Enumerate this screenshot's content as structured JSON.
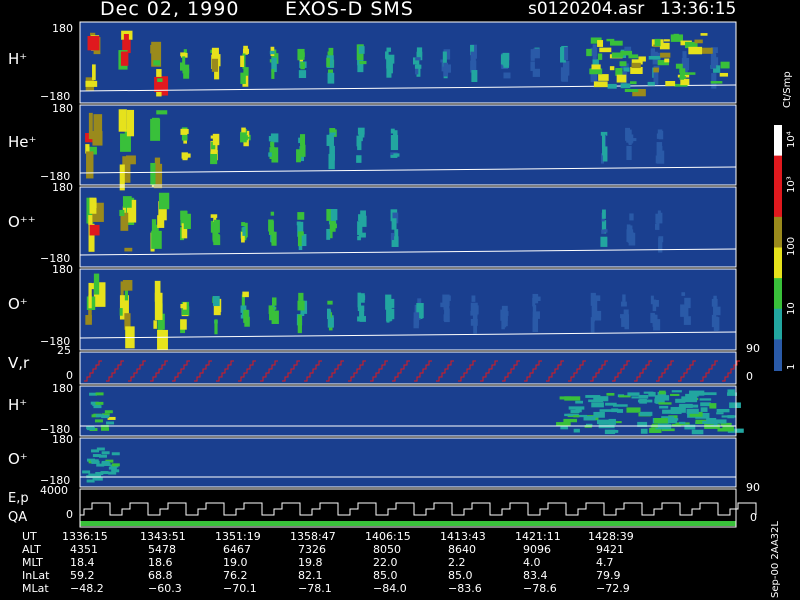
{
  "header": {
    "date": "Dec 02, 1990",
    "instrument": "EXOS-D SMS",
    "file": "s0120204.asr",
    "time": "13:36:15"
  },
  "colors": {
    "background": "#1a3f8f",
    "low": "#2a5aa8",
    "teal": "#22a6a0",
    "green": "#39c03a",
    "yellow": "#e6e21c",
    "olive": "#9a8a1c",
    "red": "#e0191e",
    "white": "#ffffff"
  },
  "panels": [
    {
      "id": "h-plus",
      "label": "H⁺",
      "ytop": "180",
      "ybottom": "−180"
    },
    {
      "id": "he-plus",
      "label": "He⁺",
      "ytop": "180",
      "ybottom": "−180"
    },
    {
      "id": "o-plus-plus",
      "label": "O⁺⁺",
      "ytop": "180",
      "ybottom": "−180"
    },
    {
      "id": "o-plus",
      "label": "O⁺",
      "ytop": "180",
      "ybottom": "−180"
    },
    {
      "id": "vr",
      "label": "V,r",
      "ytop": "25",
      "ybottom": "0",
      "right": "90",
      "right2": "0"
    },
    {
      "id": "h-plus-2",
      "label": "H⁺",
      "ytop": "180",
      "ybottom": "−180"
    },
    {
      "id": "o-plus-2",
      "label": "O⁺",
      "ytop": "180",
      "ybottom": "−180",
      "right": "90"
    },
    {
      "id": "ep-qa",
      "label": "E,p",
      "label2": "QA",
      "ytop": "4000",
      "ybottom": "0",
      "right": "0"
    }
  ],
  "colorbar": {
    "title": "Ct/Smp",
    "ticks": [
      "10⁴",
      "10³",
      "100",
      "10",
      "1"
    ]
  },
  "footer_note": "Sep-00  2AA32L",
  "chart_data": {
    "type": "heatmap",
    "title": "Dec 02, 1990   EXOS-D SMS",
    "time_labels": [
      "1336:15",
      "1343:51",
      "1351:19",
      "1358:47",
      "1406:15",
      "1413:43",
      "1421:11",
      "1428:39"
    ],
    "ephemeris": [
      {
        "name": "UT",
        "values": [
          "1336:15",
          "1343:51",
          "1351:19",
          "1358:47",
          "1406:15",
          "1413:43",
          "1421:11",
          "1428:39"
        ]
      },
      {
        "name": "ALT",
        "values": [
          "4351",
          "5478",
          "6467",
          "7326",
          "8050",
          "8640",
          "9096",
          "9421"
        ]
      },
      {
        "name": "MLT",
        "values": [
          "18.4",
          "18.6",
          "19.0",
          "19.8",
          "22.0",
          "2.2",
          "4.0",
          "4.7"
        ]
      },
      {
        "name": "InLat",
        "values": [
          "59.2",
          "68.8",
          "76.2",
          "82.1",
          "85.0",
          "85.0",
          "83.4",
          "79.9"
        ]
      },
      {
        "name": "MLat",
        "values": [
          "−48.2",
          "−60.3",
          "−70.1",
          "−78.1",
          "−84.0",
          "−83.6",
          "−78.6",
          "−72.9"
        ]
      }
    ]
  }
}
